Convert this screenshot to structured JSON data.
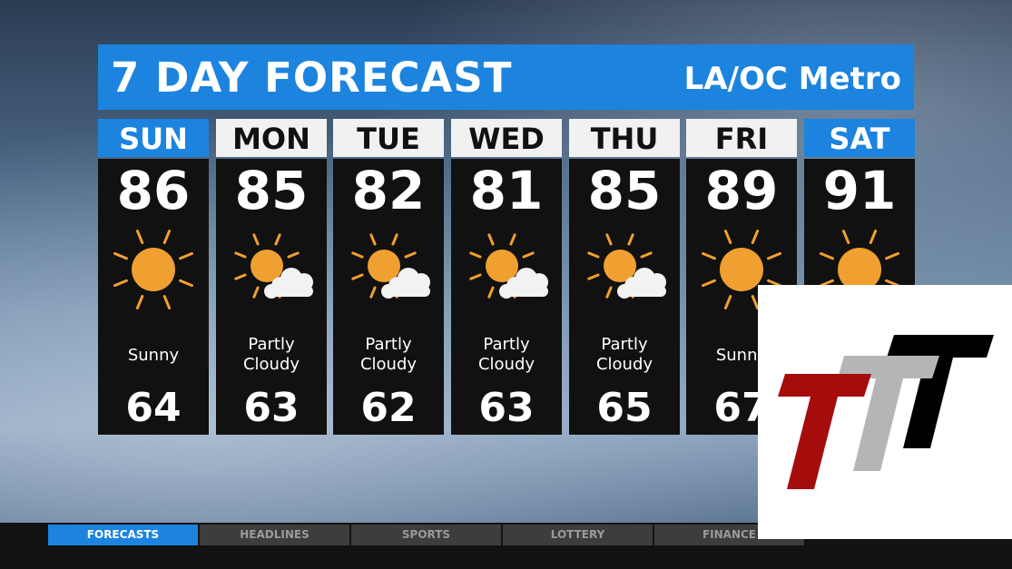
{
  "header": {
    "title": "7 DAY FORECAST",
    "region": "LA/OC Metro"
  },
  "colors": {
    "accent": "#1c84de",
    "sun": "#f0a030"
  },
  "days": [
    {
      "day": "SUN",
      "high": "86",
      "condition": "Sunny",
      "low": "64",
      "icon": "sun-icon",
      "weekend": true
    },
    {
      "day": "MON",
      "high": "85",
      "condition": "Partly Cloudy",
      "low": "63",
      "icon": "partly-cloudy-icon",
      "weekend": false
    },
    {
      "day": "TUE",
      "high": "82",
      "condition": "Partly Cloudy",
      "low": "62",
      "icon": "partly-cloudy-icon",
      "weekend": false
    },
    {
      "day": "WED",
      "high": "81",
      "condition": "Partly Cloudy",
      "low": "63",
      "icon": "partly-cloudy-icon",
      "weekend": false
    },
    {
      "day": "THU",
      "high": "85",
      "condition": "Partly Cloudy",
      "low": "65",
      "icon": "partly-cloudy-icon",
      "weekend": false
    },
    {
      "day": "FRI",
      "high": "89",
      "condition": "Sunny",
      "low": "67",
      "icon": "sun-icon",
      "weekend": false
    },
    {
      "day": "SAT",
      "high": "91",
      "condition": "",
      "low": "",
      "icon": "sun-icon",
      "weekend": true
    }
  ],
  "ticker": {
    "tabs": [
      "FORECASTS",
      "HEADLINES",
      "SPORTS",
      "LOTTERY",
      "FINANCE"
    ],
    "active": 0
  }
}
